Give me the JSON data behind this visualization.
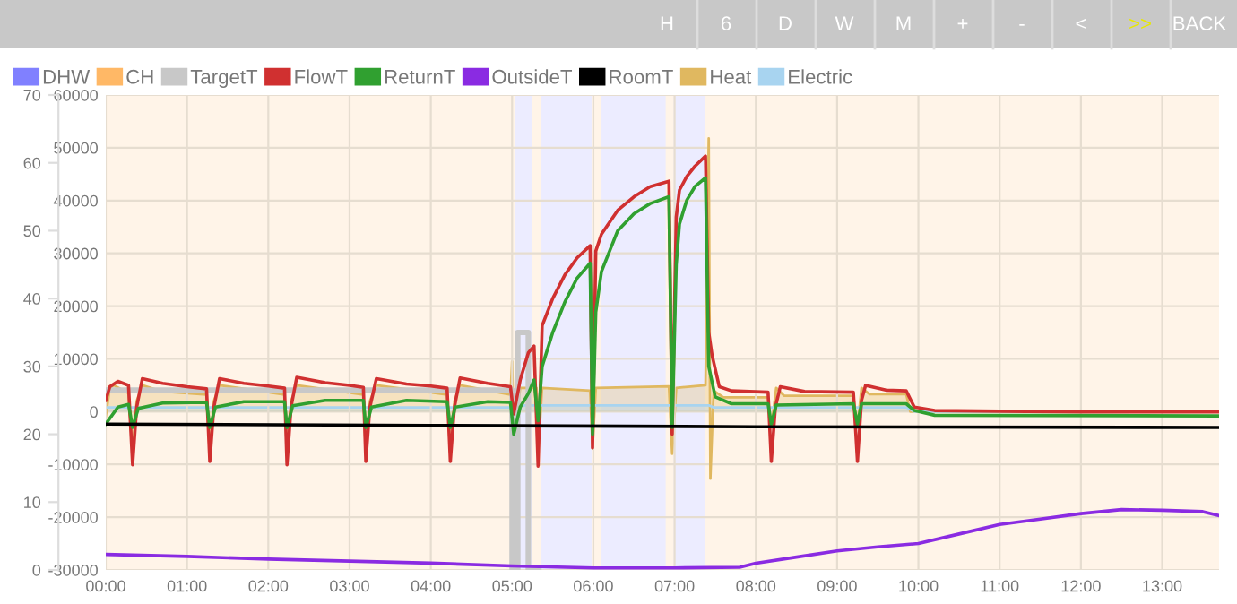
{
  "chart_data": {
    "type": "line",
    "annotations": [
      "H",
      "6",
      "D",
      "W",
      "M",
      "+",
      "-",
      "<",
      ">>",
      "BACK"
    ],
    "xlim": [
      0,
      13.7
    ],
    "xticks": [
      {
        "value": 0,
        "label": "00:00"
      },
      {
        "value": 1,
        "label": "01:00"
      },
      {
        "value": 2,
        "label": "02:00"
      },
      {
        "value": 3,
        "label": "03:00"
      },
      {
        "value": 4,
        "label": "04:00"
      },
      {
        "value": 5,
        "label": "05:00"
      },
      {
        "value": 6,
        "label": "06:00"
      },
      {
        "value": 7,
        "label": "07:00"
      },
      {
        "value": 8,
        "label": "08:00"
      },
      {
        "value": 9,
        "label": "09:00"
      },
      {
        "value": 10,
        "label": "10:00"
      },
      {
        "value": 11,
        "label": "11:00"
      },
      {
        "value": 12,
        "label": "12:00"
      },
      {
        "value": 13,
        "label": "13:00"
      }
    ],
    "ylim": [
      0,
      70
    ],
    "yticks": [
      0,
      10,
      20,
      30,
      40,
      50,
      60,
      70
    ],
    "y2lim": [
      -30000,
      60000
    ],
    "y2ticks": [
      -30000,
      -20000,
      -10000,
      0,
      10000,
      20000,
      30000,
      40000,
      50000,
      60000
    ],
    "grid": true,
    "legend": "top",
    "bands": [
      {
        "axis": "x",
        "from": 5.03,
        "to": 5.25,
        "label": "DHW",
        "color": "#8080ff"
      },
      {
        "axis": "x",
        "from": 5.36,
        "to": 5.98,
        "color": "#8080ff"
      },
      {
        "axis": "x",
        "from": 6.09,
        "to": 6.89,
        "color": "#8080ff"
      },
      {
        "axis": "x",
        "from": 6.99,
        "to": 7.37,
        "color": "#8080ff"
      },
      {
        "axis": "x",
        "from": 0,
        "to": 5.03,
        "label": "CH",
        "color": "#ffb866"
      },
      {
        "axis": "x",
        "from": 5.25,
        "to": 5.36,
        "color": "#ffb866"
      },
      {
        "axis": "x",
        "from": 5.98,
        "to": 6.09,
        "color": "#ffb866"
      },
      {
        "axis": "x",
        "from": 6.89,
        "to": 6.99,
        "color": "#ffb866"
      },
      {
        "axis": "x",
        "from": 7.37,
        "to": 13.7,
        "color": "#ffb866"
      }
    ],
    "series": [
      {
        "name": "TargetT",
        "type": "step",
        "color": "#c8c8c8",
        "x": [
          0,
          5.0,
          5.07,
          5.2,
          5.33
        ],
        "values": [
          26.5,
          0,
          35,
          0,
          0
        ]
      },
      {
        "name": "FlowT",
        "type": "line",
        "color": "#d03030",
        "x": [
          0,
          0.05,
          0.15,
          0.28,
          0.33,
          0.38,
          0.45,
          0.7,
          1.0,
          1.24,
          1.28,
          1.33,
          1.4,
          1.7,
          2.0,
          2.2,
          2.23,
          2.28,
          2.35,
          2.7,
          3.0,
          3.17,
          3.2,
          3.25,
          3.33,
          3.7,
          4.0,
          4.2,
          4.24,
          4.29,
          4.36,
          4.7,
          4.98,
          5.02,
          5.1,
          5.2,
          5.27,
          5.32,
          5.37,
          5.5,
          5.65,
          5.8,
          5.96,
          5.99,
          6.03,
          6.1,
          6.3,
          6.5,
          6.7,
          6.93,
          6.97,
          7.02,
          7.06,
          7.15,
          7.25,
          7.38,
          7.42,
          7.46,
          7.55,
          7.7,
          8.15,
          8.19,
          8.24,
          8.3,
          8.6,
          9.2,
          9.25,
          9.3,
          9.35,
          9.6,
          9.85,
          9.95,
          10.2,
          11,
          12,
          13.7
        ],
        "values": [
          25,
          27,
          27.8,
          27.2,
          15.5,
          24,
          28.2,
          27.5,
          27,
          26.7,
          16,
          24,
          28.2,
          27.5,
          27.1,
          26.8,
          15.5,
          24,
          28.4,
          27.6,
          27.2,
          26.9,
          16,
          24,
          28.2,
          27.4,
          27.1,
          26.8,
          16,
          24,
          28.3,
          27.5,
          27,
          23,
          28,
          32,
          33,
          15.3,
          36,
          40,
          43.5,
          46,
          47.8,
          18,
          47,
          49.5,
          53,
          55,
          56.5,
          57.3,
          20,
          52,
          56,
          58,
          59.5,
          61,
          35,
          31.7,
          27,
          26.4,
          26.2,
          16,
          24,
          27,
          26.3,
          26.2,
          16,
          25,
          27.2,
          26.5,
          26.4,
          24,
          23.5,
          23.4,
          23.3,
          23.3
        ]
      },
      {
        "name": "ReturnT",
        "type": "line",
        "color": "#30a030",
        "x": [
          0,
          0.15,
          0.28,
          0.33,
          0.4,
          0.7,
          1.24,
          1.28,
          1.35,
          1.7,
          2.2,
          2.23,
          2.3,
          2.7,
          3.17,
          3.2,
          3.27,
          3.7,
          4.2,
          4.24,
          4.3,
          4.7,
          4.98,
          5.02,
          5.1,
          5.2,
          5.27,
          5.32,
          5.37,
          5.5,
          5.65,
          5.8,
          5.96,
          5.99,
          6.03,
          6.1,
          6.3,
          6.5,
          6.7,
          6.93,
          6.97,
          7.02,
          7.06,
          7.15,
          7.25,
          7.38,
          7.42,
          7.5,
          7.7,
          8.15,
          8.19,
          8.25,
          9.2,
          9.25,
          9.3,
          9.85,
          9.95,
          10.2,
          13.7
        ],
        "values": [
          21.5,
          24,
          24.4,
          21,
          23.8,
          24.6,
          24.7,
          21,
          24,
          24.8,
          24.8,
          21,
          24.2,
          25,
          25,
          21,
          24,
          25,
          24.8,
          21,
          24,
          24.8,
          24.7,
          20,
          24,
          26,
          28,
          22,
          30,
          35,
          39.5,
          43,
          45.2,
          20,
          38,
          44,
          50,
          52.5,
          54,
          55,
          21,
          45,
          51,
          54.5,
          56.5,
          57.8,
          30,
          25.5,
          24.5,
          24.5,
          21.5,
          24.3,
          24.5,
          21.5,
          24.5,
          24.5,
          23.5,
          22.8,
          22.7
        ]
      },
      {
        "name": "OutsideT",
        "type": "line",
        "color": "#8a2be2",
        "x": [
          0,
          1,
          2,
          3,
          4,
          5,
          6,
          7,
          7.8,
          8,
          8.5,
          9,
          9.5,
          10,
          10.5,
          11,
          11.5,
          12,
          12.5,
          13,
          13.5,
          13.7
        ],
        "values": [
          2.3,
          2.0,
          1.6,
          1.3,
          1.0,
          0.6,
          0.3,
          0.3,
          0.4,
          1.0,
          1.9,
          2.8,
          3.4,
          3.9,
          5.3,
          6.7,
          7.5,
          8.3,
          8.9,
          8.8,
          8.6,
          8.0
        ]
      },
      {
        "name": "RoomT",
        "type": "line",
        "color": "#000000",
        "x": [
          0,
          4,
          8,
          13.7
        ],
        "values": [
          21.5,
          21.3,
          21.1,
          21
        ]
      },
      {
        "name": "Heat",
        "type": "area",
        "axis": "y2",
        "color": "#e0b860",
        "x": [
          0,
          0.05,
          0.1,
          0.28,
          0.33,
          0.38,
          0.45,
          0.7,
          1.24,
          1.28,
          1.33,
          1.4,
          2.2,
          2.23,
          2.28,
          2.35,
          3.17,
          3.2,
          3.25,
          3.33,
          4.2,
          4.24,
          4.29,
          4.36,
          4.98,
          5.0,
          5.02,
          5.1,
          5.3,
          5.32,
          5.37,
          5.96,
          5.99,
          6.03,
          6.93,
          6.97,
          7.02,
          7.38,
          7.42,
          7.44,
          7.48,
          7.6,
          8.15,
          8.19,
          8.25,
          8.35,
          9.2,
          9.25,
          9.3,
          9.4,
          9.85,
          9.9,
          13.7
        ],
        "values": [
          -1000,
          4500,
          5000,
          3500,
          -8000,
          2000,
          5000,
          3800,
          3200,
          -8000,
          2000,
          5000,
          3200,
          -8000,
          2000,
          5000,
          3200,
          -8000,
          2000,
          5000,
          3200,
          -8000,
          2000,
          5000,
          3200,
          9500,
          -5000,
          4500,
          4500,
          -8000,
          4500,
          4000,
          -7000,
          4500,
          4800,
          -8000,
          4500,
          5000,
          51800,
          -12700,
          4000,
          2700,
          2700,
          -3000,
          4500,
          3000,
          3000,
          -3000,
          4500,
          3300,
          3300,
          0,
          0
        ]
      },
      {
        "name": "Electric",
        "type": "area",
        "axis": "y2",
        "color": "#a8d4f0",
        "x": [
          0,
          5.0,
          5.05,
          7.42,
          7.48,
          9.85,
          9.95,
          13.7
        ],
        "values": [
          800,
          800,
          1200,
          1200,
          800,
          800,
          0,
          0
        ]
      }
    ]
  }
}
